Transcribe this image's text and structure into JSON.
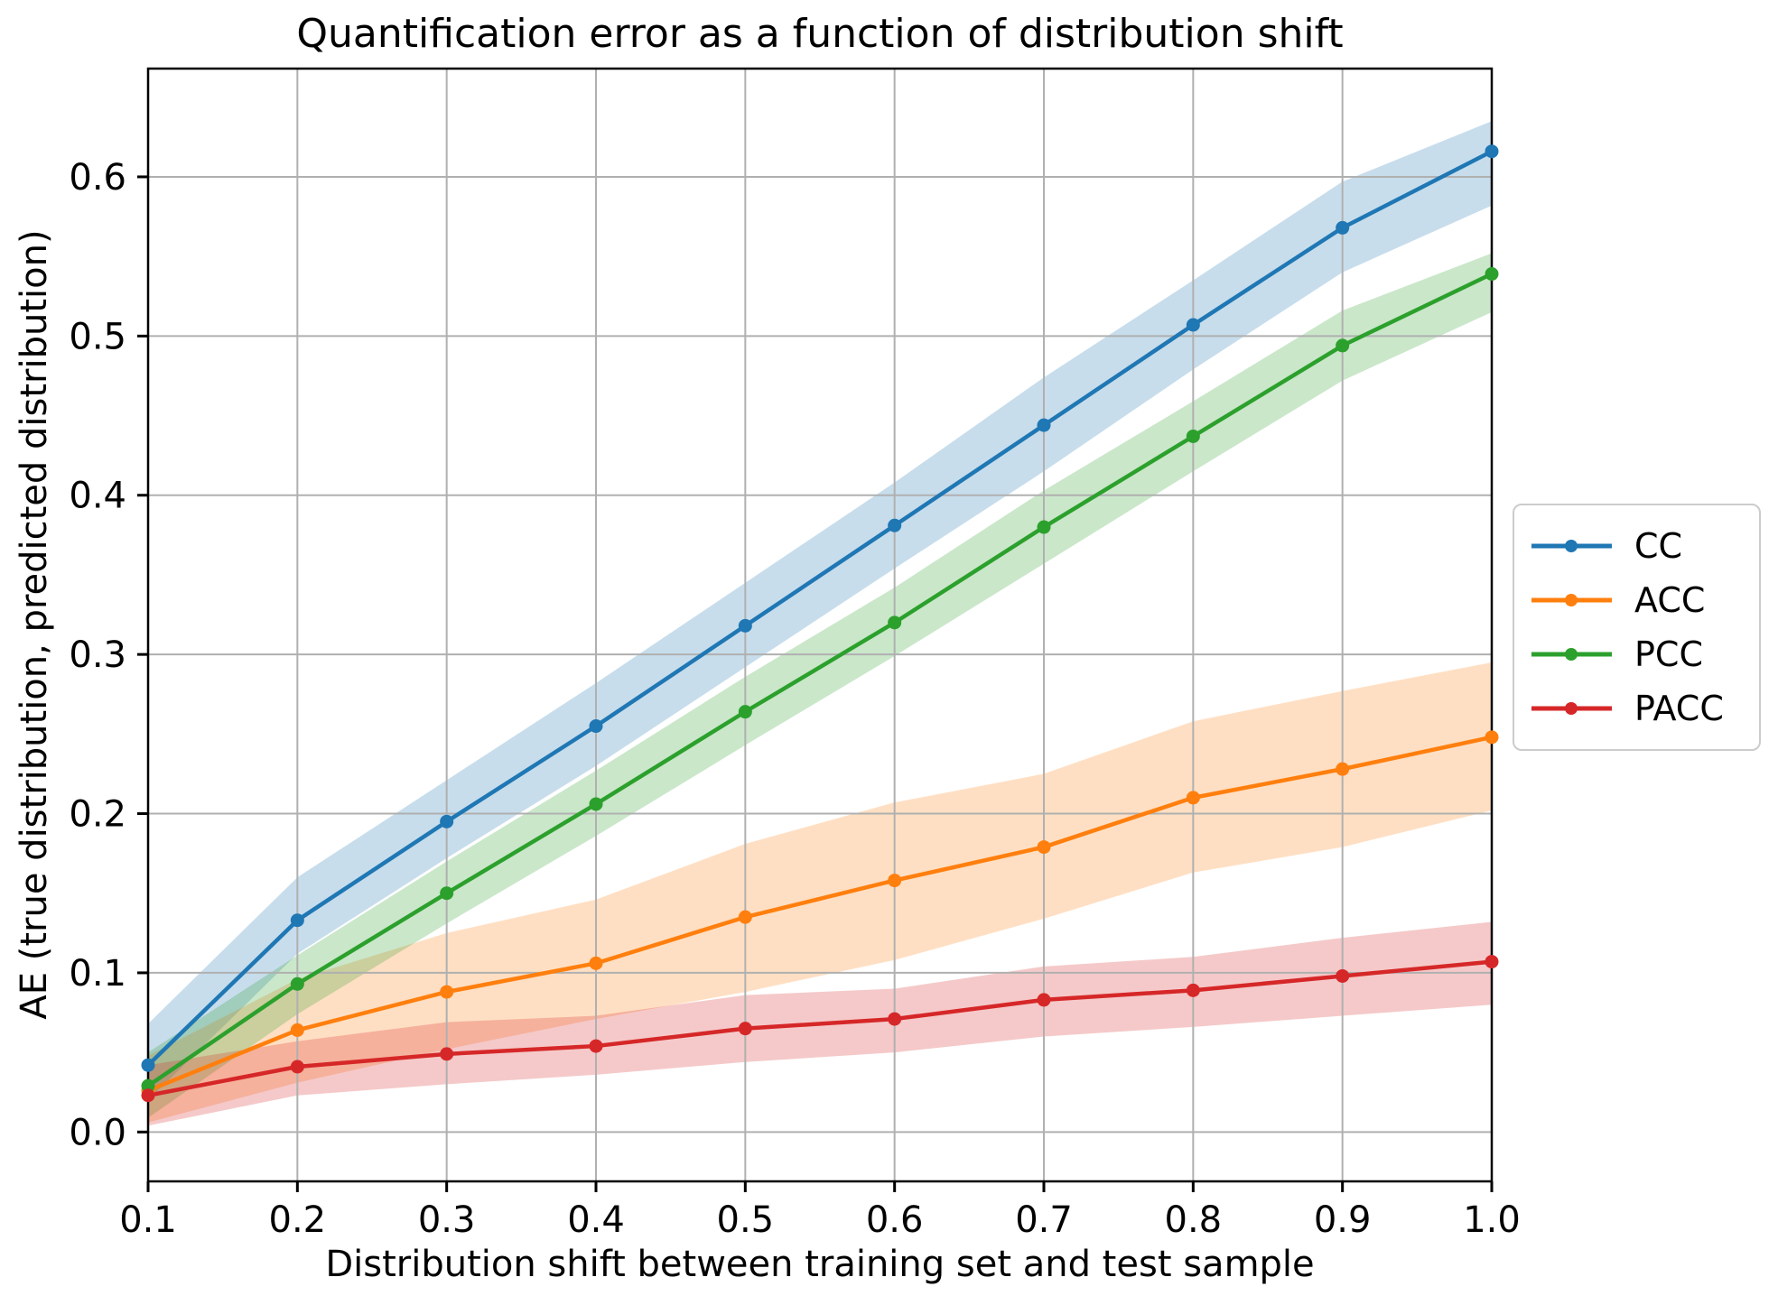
{
  "figure": {
    "title": "Quantification error as a function of distribution shift",
    "xlabel": "Distribution shift between training set and test sample",
    "ylabel": "AE (true distribution, predicted distribution)",
    "background_color": "#ffffff",
    "grid_color": "#b0b0b0",
    "spine_color": "#000000",
    "text_color": "#000000",
    "legend_border_color": "#cccccc"
  },
  "chart_data": {
    "type": "line",
    "title": "Quantification error as a function of distribution shift",
    "xlabel": "Distribution shift between training set and test sample",
    "ylabel": "AE (true distribution, predicted distribution)",
    "x": [
      0.1,
      0.2,
      0.3,
      0.4,
      0.5,
      0.6,
      0.7,
      0.8,
      0.9,
      1.0
    ],
    "xlim": [
      0.1,
      1.0
    ],
    "ylim": [
      -0.031,
      0.668
    ],
    "x_tick_labels": [
      "0.1",
      "0.2",
      "0.3",
      "0.4",
      "0.5",
      "0.6",
      "0.7",
      "0.8",
      "0.9",
      "1.0"
    ],
    "x_tick_values": [
      0.1,
      0.2,
      0.3,
      0.4,
      0.5,
      0.6,
      0.7,
      0.8,
      0.9,
      1.0
    ],
    "y_tick_labels": [
      "0.0",
      "0.1",
      "0.2",
      "0.3",
      "0.4",
      "0.5",
      "0.6"
    ],
    "y_tick_values": [
      0.0,
      0.1,
      0.2,
      0.3,
      0.4,
      0.5,
      0.6
    ],
    "grid": true,
    "legend_position": "right-outside",
    "band_opacity": 0.25,
    "series": [
      {
        "name": "CC",
        "color": "#1f77b4",
        "values": [
          0.042,
          0.133,
          0.195,
          0.255,
          0.318,
          0.381,
          0.444,
          0.507,
          0.568,
          0.616
        ],
        "band_low": [
          0.02,
          0.112,
          0.172,
          0.23,
          0.292,
          0.354,
          0.415,
          0.479,
          0.54,
          0.582
        ],
        "band_high": [
          0.068,
          0.16,
          0.221,
          0.282,
          0.345,
          0.408,
          0.474,
          0.535,
          0.597,
          0.635
        ]
      },
      {
        "name": "ACC",
        "color": "#ff7f0e",
        "values": [
          0.026,
          0.064,
          0.088,
          0.106,
          0.135,
          0.158,
          0.179,
          0.21,
          0.228,
          0.248
        ],
        "band_low": [
          0.006,
          0.031,
          0.052,
          0.071,
          0.088,
          0.108,
          0.134,
          0.163,
          0.179,
          0.202
        ],
        "band_high": [
          0.048,
          0.096,
          0.125,
          0.146,
          0.181,
          0.207,
          0.225,
          0.258,
          0.277,
          0.295
        ]
      },
      {
        "name": "PCC",
        "color": "#2ca02c",
        "values": [
          0.029,
          0.093,
          0.15,
          0.206,
          0.264,
          0.32,
          0.38,
          0.437,
          0.494,
          0.539
        ],
        "band_low": [
          0.009,
          0.074,
          0.131,
          0.186,
          0.243,
          0.299,
          0.357,
          0.415,
          0.472,
          0.515
        ],
        "band_high": [
          0.05,
          0.111,
          0.17,
          0.227,
          0.286,
          0.342,
          0.403,
          0.459,
          0.516,
          0.552
        ]
      },
      {
        "name": "PACC",
        "color": "#d62728",
        "values": [
          0.023,
          0.041,
          0.049,
          0.054,
          0.065,
          0.071,
          0.083,
          0.089,
          0.098,
          0.107
        ],
        "band_low": [
          0.004,
          0.023,
          0.03,
          0.036,
          0.044,
          0.05,
          0.06,
          0.066,
          0.073,
          0.08
        ],
        "band_high": [
          0.042,
          0.057,
          0.069,
          0.073,
          0.086,
          0.09,
          0.104,
          0.11,
          0.122,
          0.132
        ]
      }
    ]
  }
}
